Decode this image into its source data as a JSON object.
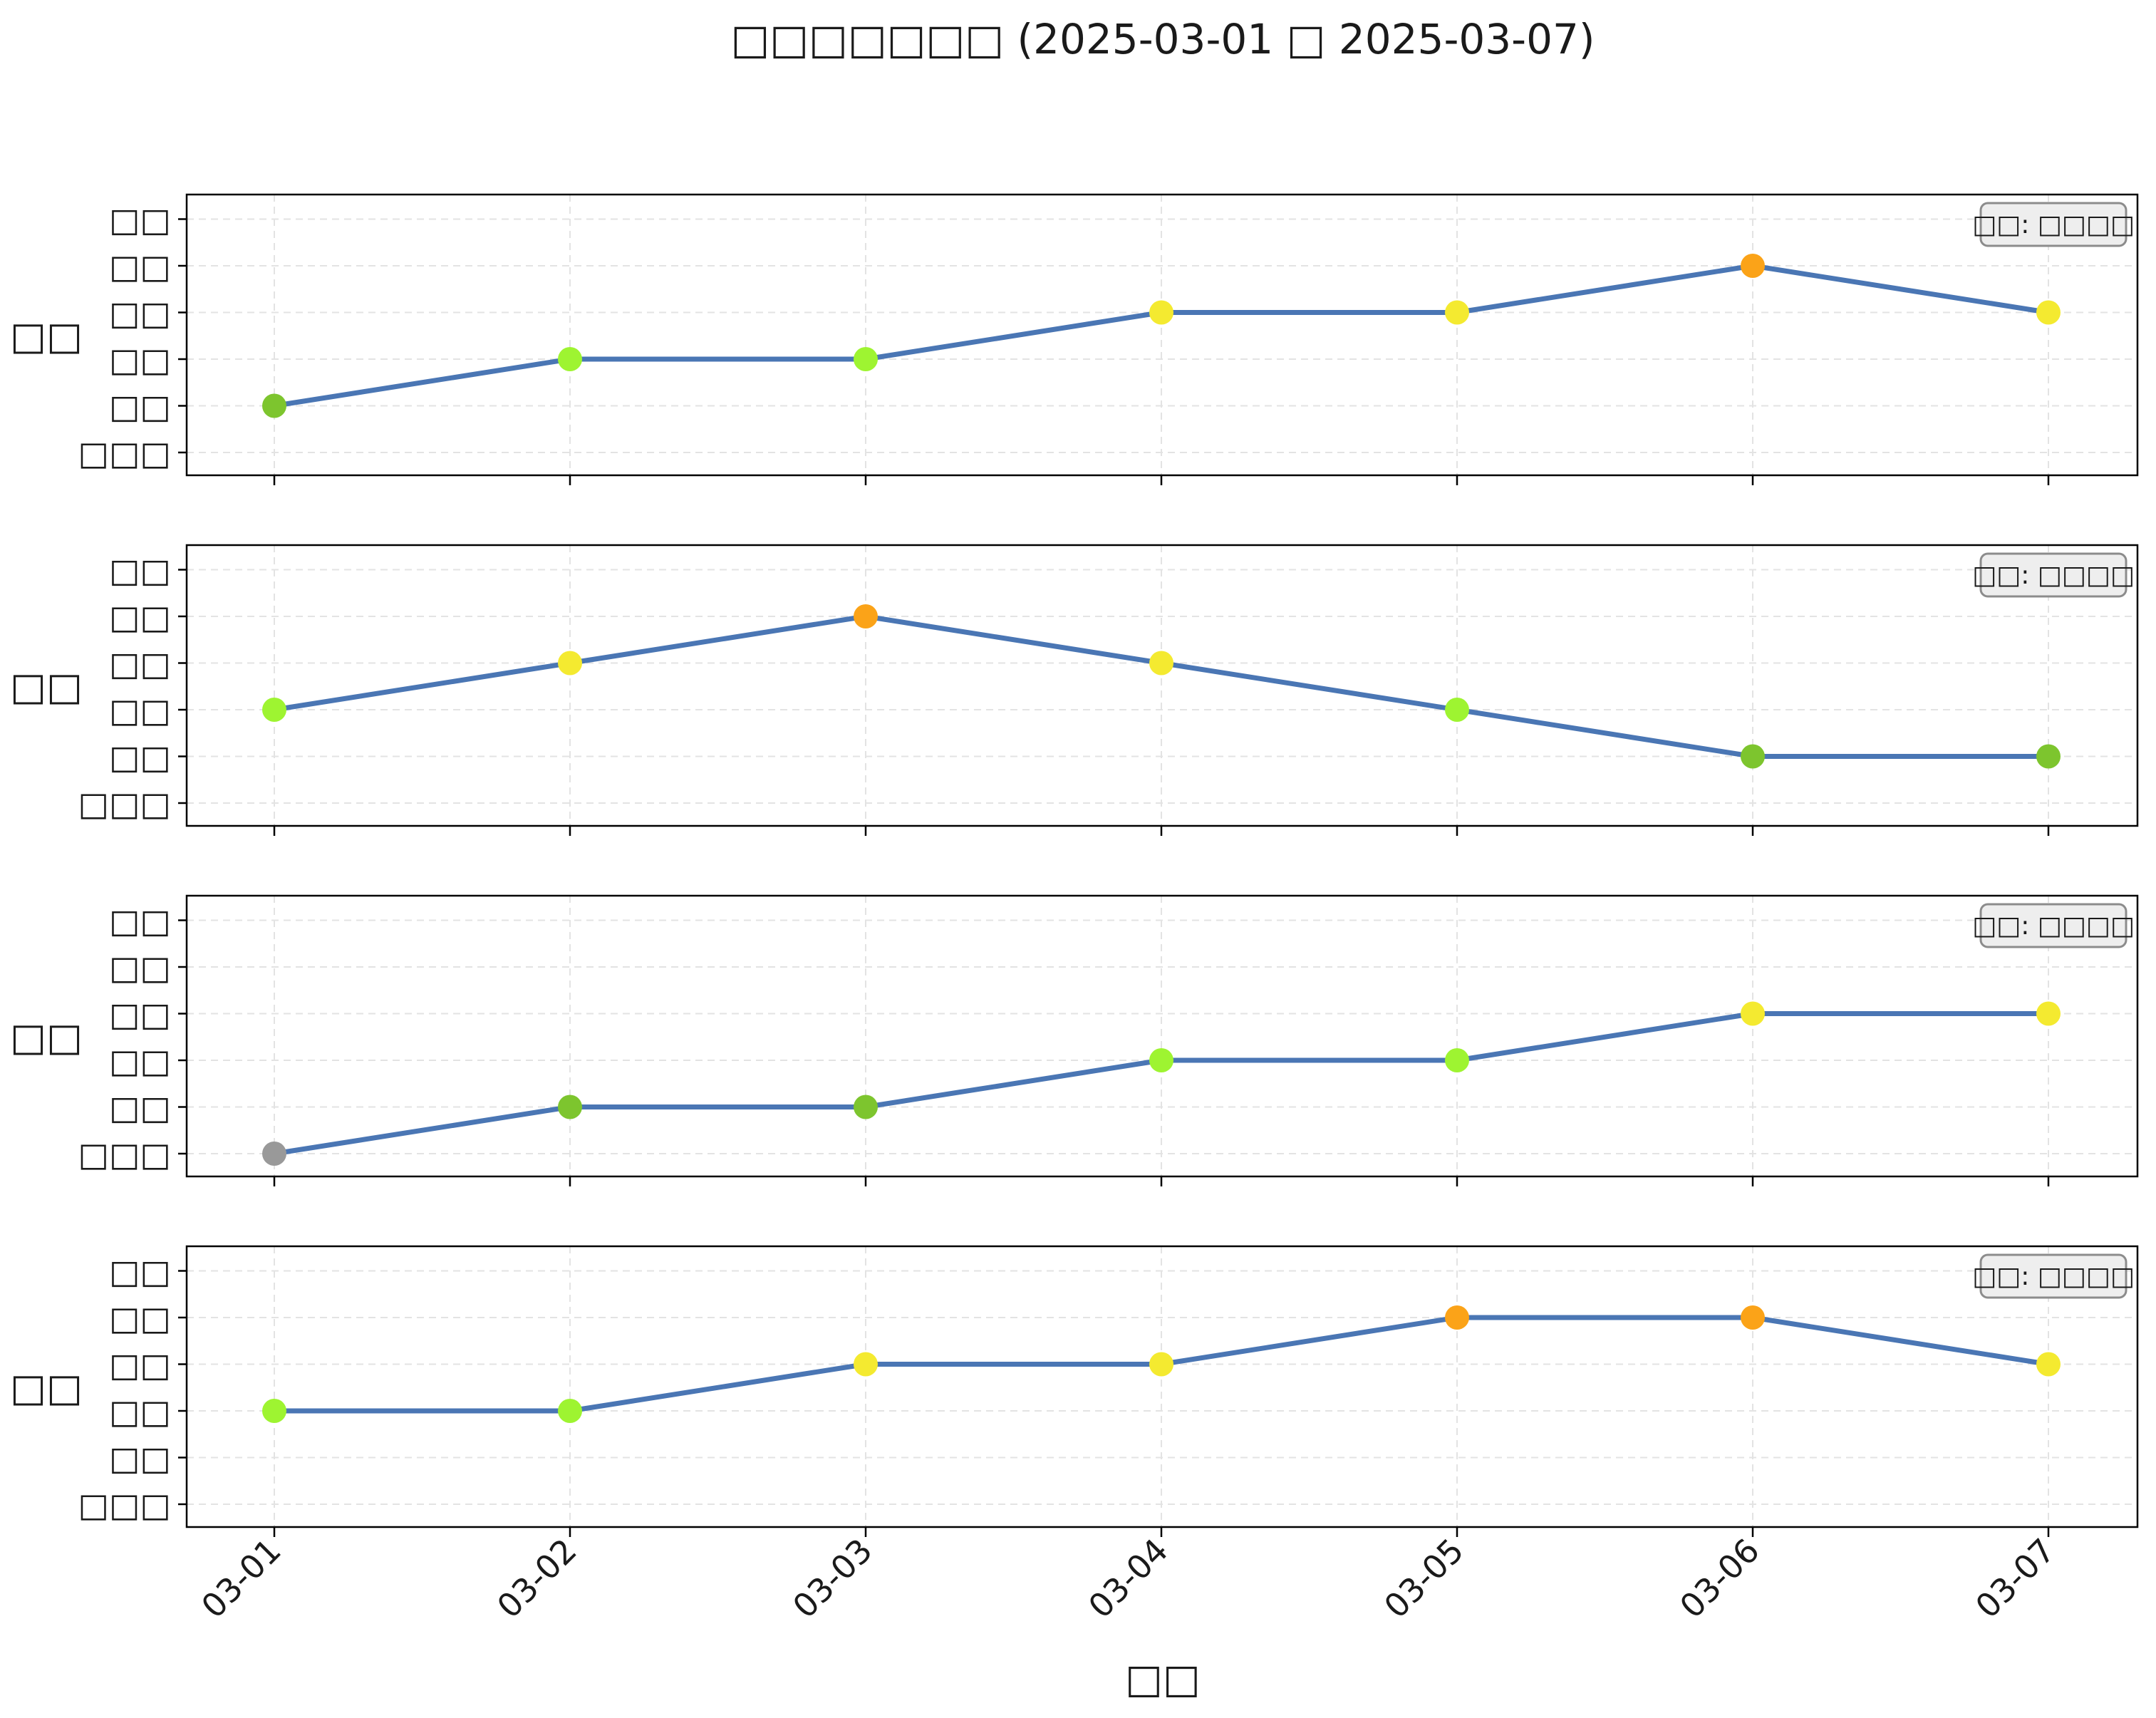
{
  "chart_data": {
    "type": "line",
    "title": "□□□□□□□ (2025-03-01 □ 2025-03-07)",
    "xlabel": "□□",
    "x": [
      "03-01",
      "03-02",
      "03-03",
      "03-04",
      "03-05",
      "03-06",
      "03-07"
    ],
    "y_levels": [
      "□□□",
      "□□",
      "□□",
      "□□",
      "□□",
      "□□"
    ],
    "level_colors": [
      "#999999",
      "#7dc52e",
      "#9ef431",
      "#f4ea30",
      "#fba318",
      "#f4ea30"
    ],
    "line_color": "#4a76b4",
    "grid": true,
    "legend_position": "top-right",
    "panels": [
      {
        "ylabel": "□□",
        "annotation": "□□: □□□□",
        "levels": [
          1,
          2,
          2,
          3,
          3,
          4,
          3
        ]
      },
      {
        "ylabel": "□□",
        "annotation": "□□: □□□□",
        "levels": [
          2,
          3,
          4,
          3,
          2,
          1,
          1
        ]
      },
      {
        "ylabel": "□□",
        "annotation": "□□: □□□□",
        "levels": [
          0,
          1,
          1,
          2,
          2,
          3,
          3
        ]
      },
      {
        "ylabel": "□□",
        "annotation": "□□: □□□□",
        "levels": [
          2,
          2,
          3,
          3,
          4,
          4,
          3
        ]
      }
    ]
  }
}
